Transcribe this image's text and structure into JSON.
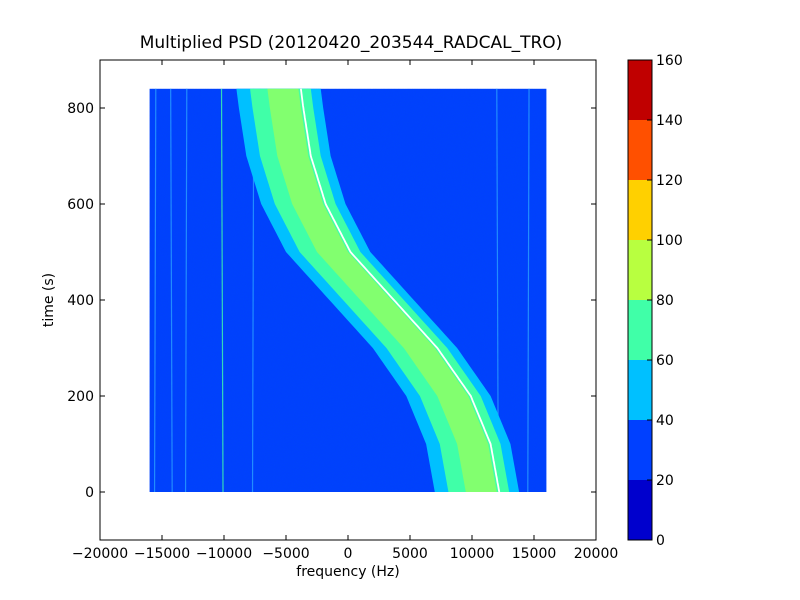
{
  "chart_data": {
    "type": "heatmap",
    "title": "Multiplied PSD (20120420_203544_RADCAL_TRO)",
    "xlabel": "frequency (Hz)",
    "ylabel": "time (s)",
    "xlim": [
      -20000,
      20000
    ],
    "ylim": [
      -100,
      900
    ],
    "xticks": [
      {
        "value": -20000,
        "label": "−20000"
      },
      {
        "value": -15000,
        "label": "−15000"
      },
      {
        "value": -10000,
        "label": "−10000"
      },
      {
        "value": -5000,
        "label": "−5000"
      },
      {
        "value": 0,
        "label": "0"
      },
      {
        "value": 5000,
        "label": "5000"
      },
      {
        "value": 10000,
        "label": "10000"
      },
      {
        "value": 15000,
        "label": "15000"
      },
      {
        "value": 20000,
        "label": "20000"
      }
    ],
    "yticks": [
      {
        "value": 0,
        "label": "0"
      },
      {
        "value": 200,
        "label": "200"
      },
      {
        "value": 400,
        "label": "400"
      },
      {
        "value": 600,
        "label": "600"
      },
      {
        "value": 800,
        "label": "800"
      }
    ],
    "data_extent": {
      "x": [
        -16000,
        16000
      ],
      "y": [
        0,
        840
      ]
    },
    "background_level_color": "#0040ff",
    "colorbar": {
      "levels": [
        0,
        20,
        40,
        60,
        80,
        100,
        120,
        140,
        160
      ],
      "labels": [
        "0",
        "20",
        "40",
        "60",
        "80",
        "100",
        "120",
        "140",
        "160"
      ],
      "colors": [
        "#0000cd",
        "#0040ff",
        "#00c0ff",
        "#40ffa8",
        "#b8ff40",
        "#ffd000",
        "#ff5000",
        "#c00000"
      ]
    },
    "track": {
      "description_points_time": [
        0,
        100,
        200,
        300,
        400,
        500,
        600,
        700,
        800,
        840
      ],
      "center_freq": [
        11000,
        10300,
        8700,
        6000,
        2500,
        -1000,
        -3000,
        -4200,
        -4800,
        -5000
      ]
    },
    "grid": false
  }
}
